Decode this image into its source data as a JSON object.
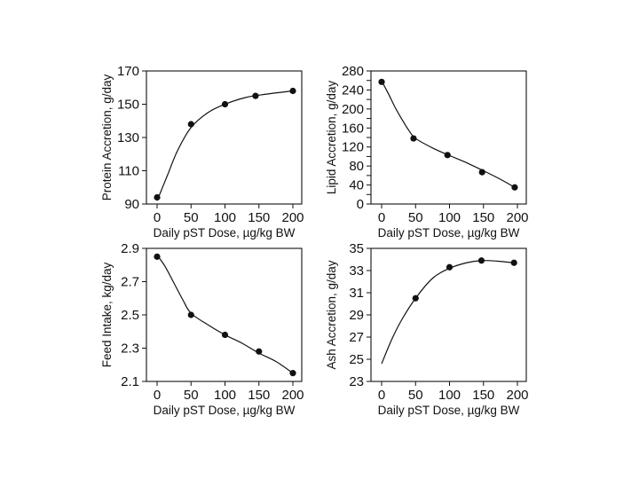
{
  "colors": {
    "background": "#ffffff",
    "ink": "#111111"
  },
  "chart_data": [
    {
      "type": "scatter",
      "position": "top-left",
      "xlabel": "Daily pST Dose, µg/kg BW",
      "ylabel": "Protein Accretion, g/day",
      "xlim": [
        0,
        200
      ],
      "ylim": [
        90,
        170
      ],
      "xticks": [
        0,
        50,
        100,
        150,
        200
      ],
      "yticks": [
        90,
        110,
        130,
        150,
        170
      ],
      "x_tick_labels": [
        "0",
        "50",
        "100",
        "150",
        "200"
      ],
      "y_tick_labels": [
        "90",
        "110",
        "130",
        "150",
        "170"
      ],
      "points": {
        "x": [
          0,
          50,
          100,
          145,
          200
        ],
        "y": [
          94,
          138,
          150,
          155,
          158
        ]
      },
      "curve": {
        "x": [
          0,
          15,
          30,
          50,
          75,
          100,
          130,
          160,
          200
        ],
        "y": [
          92,
          107,
          122,
          136,
          145,
          150,
          154,
          156,
          158
        ]
      },
      "grid": false
    },
    {
      "type": "scatter",
      "position": "top-right",
      "xlabel": "Daily pST Dose, µg/kg BW",
      "ylabel": "Lipid Accretion, g/day",
      "xlim": [
        0,
        200
      ],
      "ylim": [
        0,
        280
      ],
      "xticks": [
        0,
        50,
        100,
        150,
        200
      ],
      "yticks": [
        0,
        20,
        40,
        60,
        80,
        100,
        120,
        140,
        160,
        180,
        200,
        220,
        240,
        260,
        280
      ],
      "x_tick_labels": [
        "0",
        "50",
        "100",
        "150",
        "200"
      ],
      "y_tick_labels": [
        "0",
        "40",
        "80",
        "120",
        "160",
        "200",
        "240",
        "280"
      ],
      "y_tick_label_values": [
        0,
        40,
        80,
        120,
        160,
        200,
        240,
        280
      ],
      "points": {
        "x": [
          0,
          47,
          97,
          148,
          196
        ],
        "y": [
          257,
          138,
          103,
          67,
          35
        ]
      },
      "curve": {
        "x": [
          0,
          10,
          20,
          30,
          40,
          50,
          75,
          100,
          125,
          150,
          175,
          196
        ],
        "y": [
          259,
          232,
          203,
          178,
          155,
          138,
          118,
          102,
          87,
          70,
          52,
          35
        ]
      },
      "grid": false
    },
    {
      "type": "scatter",
      "position": "bottom-left",
      "xlabel": "Daily pST Dose, µg/kg BW",
      "ylabel": "Feed Intake, kg/day",
      "xlim": [
        0,
        200
      ],
      "ylim": [
        2.1,
        2.9
      ],
      "xticks": [
        0,
        50,
        100,
        150,
        200
      ],
      "yticks": [
        2.1,
        2.3,
        2.5,
        2.7,
        2.9
      ],
      "x_tick_labels": [
        "0",
        "50",
        "100",
        "150",
        "200"
      ],
      "y_tick_labels": [
        "2.1",
        "2.3",
        "2.5",
        "2.7",
        "2.9"
      ],
      "points": {
        "x": [
          0,
          50,
          100,
          150,
          200
        ],
        "y": [
          2.85,
          2.5,
          2.38,
          2.28,
          2.15
        ]
      },
      "curve": {
        "x": [
          0,
          12,
          25,
          38,
          50,
          75,
          100,
          125,
          150,
          175,
          200
        ],
        "y": [
          2.86,
          2.79,
          2.69,
          2.59,
          2.51,
          2.44,
          2.38,
          2.33,
          2.27,
          2.22,
          2.15
        ]
      },
      "grid": false
    },
    {
      "type": "scatter",
      "position": "bottom-right",
      "xlabel": "Daily pST Dose, µg/kg BW",
      "ylabel": "Ash Accretion, g/day",
      "xlim": [
        0,
        200
      ],
      "ylim": [
        23,
        35
      ],
      "xticks": [
        0,
        50,
        100,
        150,
        200
      ],
      "yticks": [
        23,
        25,
        27,
        29,
        31,
        33,
        35
      ],
      "x_tick_labels": [
        "0",
        "50",
        "100",
        "150",
        "200"
      ],
      "y_tick_labels": [
        "23",
        "25",
        "27",
        "29",
        "31",
        "33",
        "35"
      ],
      "points": {
        "x": [
          50,
          100,
          147,
          195
        ],
        "y": [
          30.5,
          33.3,
          33.9,
          33.7
        ]
      },
      "curve": {
        "x": [
          0,
          15,
          30,
          50,
          75,
          100,
          125,
          147,
          170,
          195
        ],
        "y": [
          24.6,
          26.8,
          28.6,
          30.5,
          32.3,
          33.2,
          33.7,
          33.9,
          33.85,
          33.7
        ]
      },
      "grid": false
    }
  ]
}
